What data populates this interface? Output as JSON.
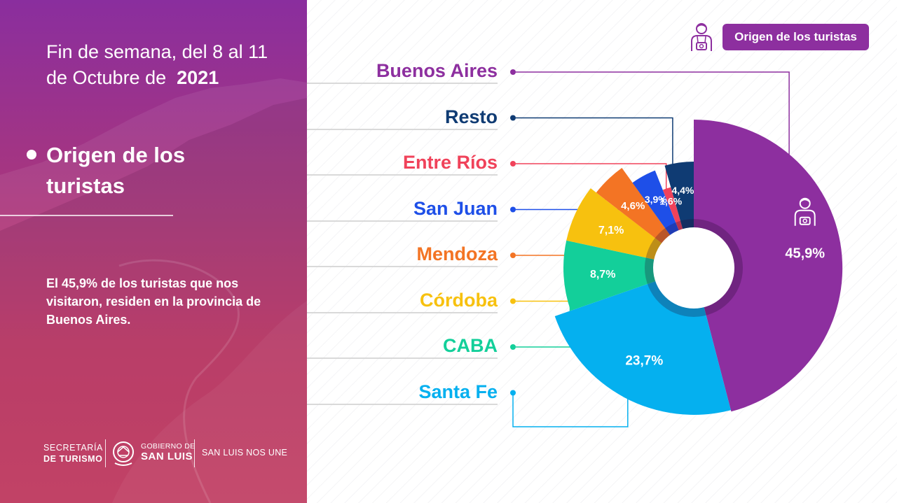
{
  "header": {
    "line1": "Fin de semana, del 8 al 11",
    "line2_prefix": "de Octubre de",
    "year": "2021"
  },
  "section": {
    "title": "Origen de los turistas"
  },
  "description": "El 45,9% de los turistas que nos visitaron, residen en  la provincia de Buenos Aires.",
  "badge": {
    "label": "Origen de los turistas",
    "icon": "tourist-camera-icon"
  },
  "footer": {
    "secretaria_line1": "SECRETARÍA",
    "secretaria_line2": "DE TURISMO",
    "gobierno_line1": "GOBIERNO DE",
    "gobierno_line2": "SAN LUIS",
    "slogan": "SAN LUIS NOS UNE"
  },
  "chart_data": {
    "type": "pie",
    "title": "Origen de los turistas",
    "slices": [
      {
        "label": "Buenos Aires",
        "value": 45.9,
        "value_label": "45,9%",
        "color": "#8d2f9f"
      },
      {
        "label": "Santa Fe",
        "value": 23.7,
        "value_label": "23,7%",
        "color": "#05b0ef"
      },
      {
        "label": "CABA",
        "value": 8.7,
        "value_label": "8,7%",
        "color": "#13cf9a"
      },
      {
        "label": "Córdoba",
        "value": 7.1,
        "value_label": "7,1%",
        "color": "#f7c10f"
      },
      {
        "label": "Mendoza",
        "value": 4.6,
        "value_label": "4,6%",
        "color": "#f37424"
      },
      {
        "label": "San Juan",
        "value": 3.9,
        "value_label": "3,9%",
        "color": "#1e4fe8"
      },
      {
        "label": "Entre Ríos",
        "value": 1.6,
        "value_label": "1,6%",
        "color": "#f0425a"
      },
      {
        "label": "Resto",
        "value": 4.4,
        "value_label": "4,4%",
        "color": "#0f3b73"
      }
    ],
    "legend_order": [
      "Buenos Aires",
      "Resto",
      "Entre Ríos",
      "San Juan",
      "Mendoza",
      "Córdoba",
      "CABA",
      "Santa Fe"
    ],
    "legend_placement": "left"
  }
}
